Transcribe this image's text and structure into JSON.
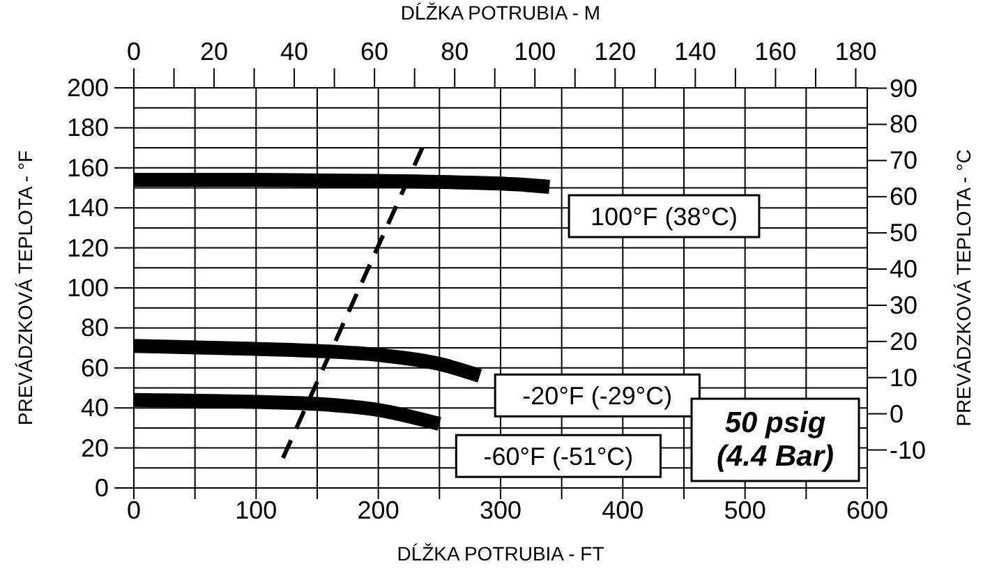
{
  "chart_data": {
    "type": "line",
    "xlabel": "DĹŽKA POTRUBIA - FT",
    "x2label": "DĹŽKA POTRUBIA - M",
    "ylabel": "PREVÁDZKOVÁ TEPLOTA - °F",
    "y2label": "PREVÁDZKOVÁ TEPLOTA - °C",
    "xlim": [
      0,
      600
    ],
    "xticks": [
      0,
      {
        "value": 50,
        "label": null
      },
      100,
      {
        "value": 150,
        "label": null
      },
      200,
      {
        "value": 250,
        "label": null
      },
      300,
      {
        "value": 350,
        "label": null
      },
      400,
      {
        "value": 450,
        "label": null
      },
      500,
      {
        "value": 550,
        "label": null
      },
      600
    ],
    "x2lim": [
      0,
      182.88
    ],
    "x2ticks": [
      0,
      {
        "value": 10,
        "label": null
      },
      20,
      {
        "value": 30,
        "label": null
      },
      40,
      {
        "value": 50,
        "label": null
      },
      60,
      {
        "value": 70,
        "label": null
      },
      80,
      {
        "value": 90,
        "label": null
      },
      100,
      {
        "value": 110,
        "label": null
      },
      120,
      {
        "value": 130,
        "label": null
      },
      140,
      {
        "value": 150,
        "label": null
      },
      160,
      {
        "value": 170,
        "label": null
      },
      180
    ],
    "ylim": [
      0,
      200
    ],
    "yticks": [
      0,
      {
        "value": 10,
        "label": null
      },
      20,
      {
        "value": 30,
        "label": null
      },
      40,
      {
        "value": 50,
        "label": null
      },
      60,
      {
        "value": 70,
        "label": null
      },
      80,
      {
        "value": 90,
        "label": null
      },
      100,
      {
        "value": 110,
        "label": null
      },
      120,
      {
        "value": 130,
        "label": null
      },
      140,
      {
        "value": 150,
        "label": null
      },
      160,
      {
        "value": 170,
        "label": null
      },
      180,
      {
        "value": 190,
        "label": null
      },
      200
    ],
    "y2lim": [
      -20.5,
      90.1
    ],
    "y2ticks": [
      -10,
      0,
      10,
      20,
      30,
      40,
      50,
      60,
      70,
      80,
      90
    ],
    "grid": true,
    "marker": "none",
    "series": [
      {
        "name": "100°F (38°C)",
        "color": "#000000",
        "line_style": "solid",
        "x": [
          0,
          100,
          200,
          280,
          320,
          340
        ],
        "values": [
          154,
          154,
          153.5,
          152.5,
          151.5,
          150.5
        ]
      },
      {
        "name": "-20°F (-29°C)",
        "color": "#000000",
        "line_style": "solid",
        "x": [
          0,
          100,
          150,
          200,
          250,
          283
        ],
        "values": [
          71,
          69.5,
          68.5,
          66.5,
          62,
          56
        ]
      },
      {
        "name": "-60°F (-51°C)",
        "color": "#000000",
        "line_style": "solid",
        "x": [
          0,
          100,
          150,
          200,
          250
        ],
        "values": [
          44,
          43,
          42,
          39,
          32
        ]
      },
      {
        "color": "#000000",
        "line_style": "dashed",
        "x": [
          122,
          236
        ],
        "values": [
          15,
          170
        ]
      }
    ],
    "annotations": [
      "50 psig (4.4 Bar)"
    ]
  }
}
